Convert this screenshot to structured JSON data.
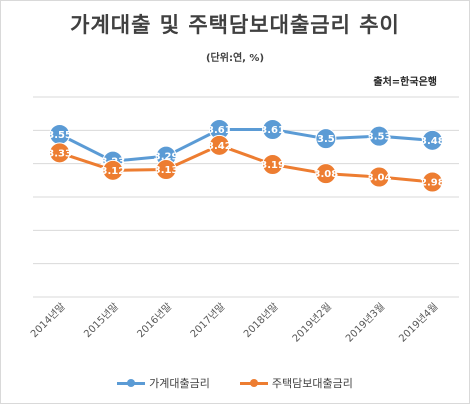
{
  "chart_data": {
    "type": "line",
    "title": "가계대출 및 주택담보대출금리 추이",
    "subtitle": "(단위:연, %)",
    "source": "출처=한국은행",
    "categories": [
      "2014년말",
      "2015년말",
      "2016년말",
      "2017년말",
      "2018년말",
      "2019년2월",
      "2019년3월",
      "2019년4월"
    ],
    "ylim": [
      1.6,
      4.0
    ],
    "grid": true,
    "legend_position": "bottom",
    "series": [
      {
        "name": "가계대출금리",
        "color": "#5b9bd5",
        "values": [
          3.55,
          3.23,
          3.29,
          3.61,
          3.61,
          3.5,
          3.53,
          3.48
        ]
      },
      {
        "name": "주택담보대출금리",
        "color": "#ed7d31",
        "values": [
          3.33,
          3.12,
          3.13,
          3.42,
          3.19,
          3.08,
          3.04,
          2.98
        ]
      }
    ]
  }
}
